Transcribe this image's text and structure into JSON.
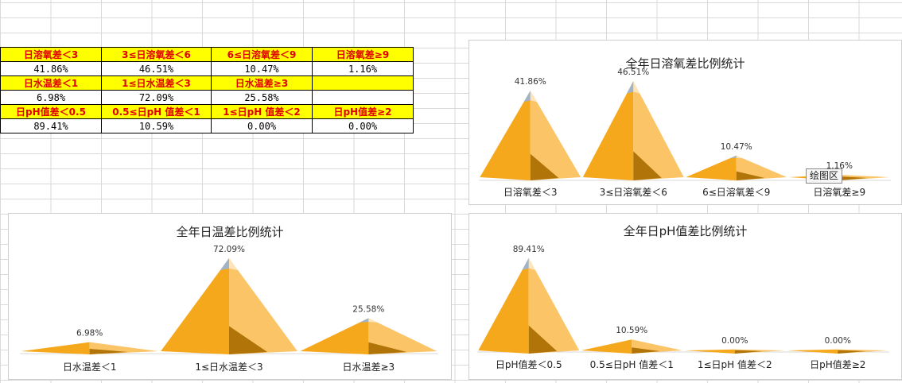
{
  "table": {
    "rows": [
      {
        "type": "hdr",
        "cells": [
          "日溶氧差＜3",
          "3≤日溶氧差＜6",
          "6≤日溶氧差＜9",
          "日溶氧差≥9"
        ]
      },
      {
        "type": "val",
        "cells": [
          "41.86%",
          "46.51%",
          "10.47%",
          "1.16%"
        ]
      },
      {
        "type": "hdr",
        "cells": [
          "日水温差＜1",
          "1≤日水温差＜3",
          "日水温差≥3",
          ""
        ]
      },
      {
        "type": "val",
        "cells": [
          "6.98%",
          "72.09%",
          "25.58%",
          ""
        ]
      },
      {
        "type": "hdr",
        "cells": [
          "日pH值差＜0.5",
          "0.5≤日pH 值差＜1",
          "1≤日pH 值差＜2",
          "日pH值差≥2"
        ]
      },
      {
        "type": "val",
        "cells": [
          "89.41%",
          "10.59%",
          "0.00%",
          "0.00%"
        ]
      }
    ]
  },
  "tooltip": {
    "text": "绘图区"
  },
  "colors": {
    "pyramid_front": "#f5a81c",
    "pyramid_side": "#fbc466",
    "pyramid_shadow": "#b07408",
    "peak": "#9fb4c8",
    "table_header_bg": "#ffff00",
    "table_header_text": "#e00000"
  },
  "chart_data": [
    {
      "type": "bar",
      "style": "pyramid",
      "title": "全年日溶氧差比例统计",
      "categories": [
        "日溶氧差＜3",
        "3≤日溶氧差＜6",
        "6≤日溶氧差＜9",
        "日溶氧差≥9"
      ],
      "values": [
        41.86,
        46.51,
        10.47,
        1.16
      ],
      "value_labels": [
        "41.86%",
        "46.51%",
        "10.47%",
        "1.16%"
      ],
      "ylim": [
        0,
        50
      ]
    },
    {
      "type": "bar",
      "style": "pyramid",
      "title": "全年日温差比例统计",
      "categories": [
        "日水温差＜1",
        "1≤日水温差＜3",
        "日水温差≥3"
      ],
      "values": [
        6.98,
        72.09,
        25.58
      ],
      "value_labels": [
        "6.98%",
        "72.09%",
        "25.58%"
      ],
      "ylim": [
        0,
        80
      ]
    },
    {
      "type": "bar",
      "style": "pyramid",
      "title": "全年日pH值差比例统计",
      "categories": [
        "日pH值差＜0.5",
        "0.5≤日pH 值差＜1",
        "1≤日pH 值差＜2",
        "日pH值差≥2"
      ],
      "values": [
        89.41,
        10.59,
        0,
        0
      ],
      "value_labels": [
        "89.41%",
        "10.59%",
        "0.00%",
        "0.00%"
      ],
      "ylim": [
        0,
        100
      ]
    }
  ]
}
